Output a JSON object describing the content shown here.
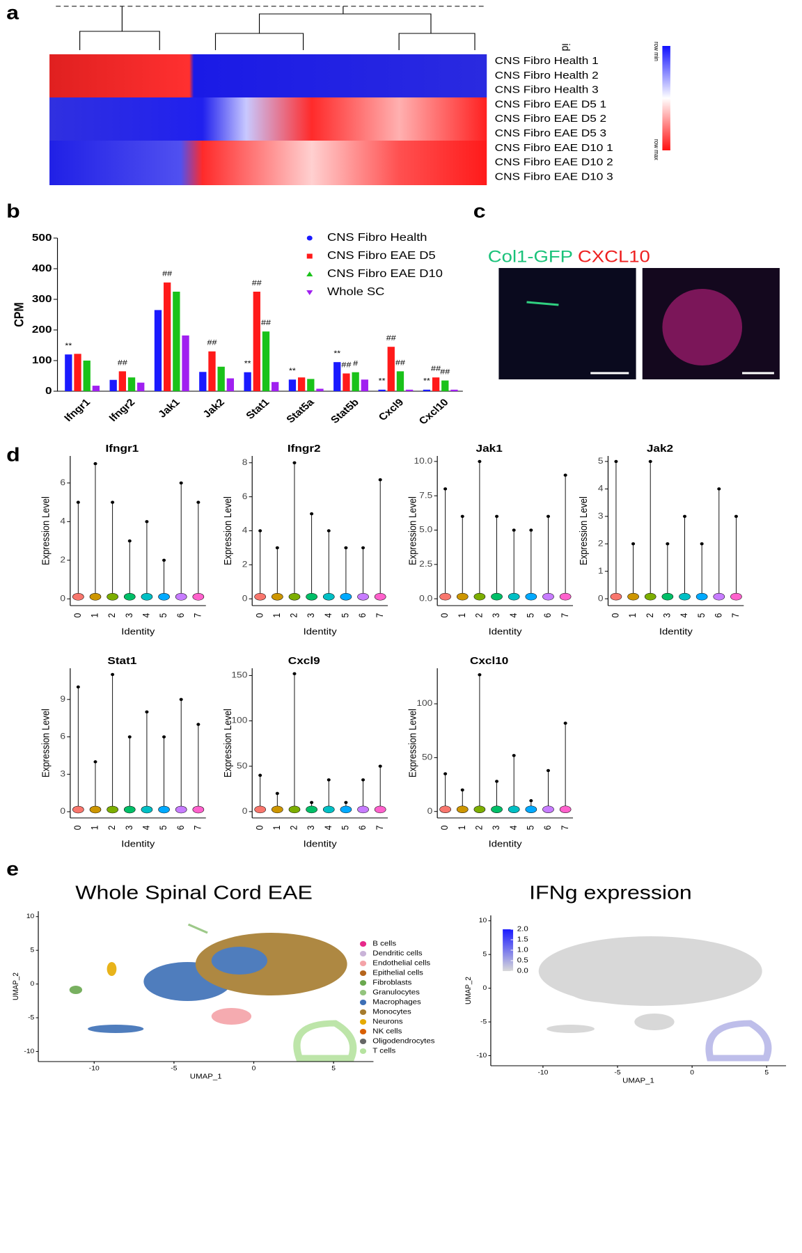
{
  "panel_labels": [
    "a",
    "b",
    "c",
    "d",
    "e"
  ],
  "figure_c": {
    "title_green": "Col1-GFP",
    "title_red": "CXCL10"
  },
  "chart_data": [
    {
      "type": "heatmap",
      "rows": [
        "CNS Fibro Health 1",
        "CNS Fibro Health 2",
        "CNS Fibro Health 3",
        "CNS Fibro EAE D5 1",
        "CNS Fibro EAE D5 2",
        "CNS Fibro EAE D5 3",
        "CNS Fibro EAE D10 1",
        "CNS Fibro EAE D10 2",
        "CNS Fibro EAE D10 3"
      ],
      "id_label": "id",
      "colorbar_labels": [
        "row min",
        "row max"
      ]
    },
    {
      "type": "bar",
      "ylabel": "CPM",
      "categories": [
        "Ifngr1",
        "Ifngr2",
        "Jak1",
        "Jak2",
        "Stat1",
        "Stat5a",
        "Stat5b",
        "Cxcl9",
        "Cxcl10"
      ],
      "ylim": [
        0,
        500
      ],
      "yticks": [
        0,
        100,
        200,
        300,
        400,
        500
      ],
      "series": [
        {
          "name": "CNS Fibro Health",
          "color": "#1a1aff",
          "values": [
            120,
            37,
            265,
            63,
            62,
            38,
            95,
            5,
            5
          ],
          "markers": [
            "**",
            null,
            null,
            null,
            "**",
            "**",
            "**",
            "**",
            "**"
          ]
        },
        {
          "name": "CNS Fibro EAE D5",
          "color": "#ff1a1a",
          "values": [
            122,
            65,
            355,
            130,
            325,
            45,
            58,
            145,
            45
          ],
          "markers": [
            null,
            "##",
            "##",
            "##",
            "##",
            null,
            "##",
            "##",
            "##"
          ]
        },
        {
          "name": "CNS Fibro EAE D10",
          "color": "#1ac21a",
          "values": [
            100,
            45,
            325,
            80,
            195,
            40,
            62,
            65,
            35
          ],
          "markers": [
            null,
            null,
            null,
            null,
            "##",
            null,
            "#",
            "##",
            "##"
          ]
        },
        {
          "name": "Whole SC",
          "color": "#a020f0",
          "values": [
            18,
            28,
            182,
            42,
            30,
            8,
            38,
            5,
            5
          ],
          "markers": [
            null,
            null,
            null,
            null,
            null,
            null,
            null,
            null,
            null
          ]
        }
      ]
    },
    {
      "type": "violin",
      "title": "Ifngr1",
      "xlabel": "Identity",
      "ylabel": "Expression Level",
      "categories": [
        "0",
        "1",
        "2",
        "3",
        "4",
        "5",
        "6",
        "7"
      ],
      "ylim": [
        -0.35,
        7.4
      ],
      "yticks": [
        0,
        2,
        4,
        6
      ],
      "values": [
        5,
        7,
        5,
        3,
        4,
        2,
        6,
        5
      ]
    },
    {
      "type": "violin",
      "title": "Ifngr2",
      "xlabel": "Identity",
      "ylabel": "Expression Level",
      "categories": [
        "0",
        "1",
        "2",
        "3",
        "4",
        "5",
        "6",
        "7"
      ],
      "ylim": [
        -0.4,
        8.4
      ],
      "yticks": [
        0,
        2,
        4,
        6,
        8
      ],
      "values": [
        4,
        3,
        8,
        5,
        4,
        3,
        3,
        7
      ]
    },
    {
      "type": "violin",
      "title": "Jak1",
      "xlabel": "Identity",
      "ylabel": "Expression Level",
      "categories": [
        "0",
        "1",
        "2",
        "3",
        "4",
        "5",
        "6",
        "7"
      ],
      "ylim": [
        -0.5,
        10.4
      ],
      "yticks": [
        {
          "value": 0,
          "label": "0.0"
        },
        {
          "value": 2.5,
          "label": "2.5"
        },
        {
          "value": 5,
          "label": "5.0"
        },
        {
          "value": 7.5,
          "label": "7.5"
        },
        {
          "value": 10,
          "label": "10.0"
        }
      ],
      "values": [
        8,
        6,
        10,
        6,
        5,
        5,
        6,
        9
      ]
    },
    {
      "type": "violin",
      "title": "Jak2",
      "xlabel": "Identity",
      "ylabel": "Expression Level",
      "categories": [
        "0",
        "1",
        "2",
        "3",
        "4",
        "5",
        "6",
        "7"
      ],
      "ylim": [
        -0.25,
        5.2
      ],
      "yticks": [
        0,
        1,
        2,
        3,
        4,
        5
      ],
      "values": [
        5,
        2,
        5,
        2,
        3,
        2,
        4,
        3
      ]
    },
    {
      "type": "violin",
      "title": "Stat1",
      "xlabel": "Identity",
      "ylabel": "Expression Level",
      "categories": [
        "0",
        "1",
        "2",
        "3",
        "4",
        "5",
        "6",
        "7"
      ],
      "ylim": [
        -0.5,
        11.5
      ],
      "yticks": [
        0,
        3,
        6,
        9
      ],
      "values": [
        10,
        4,
        11,
        6,
        8,
        6,
        9,
        7
      ]
    },
    {
      "type": "violin",
      "title": "Cxcl9",
      "xlabel": "Identity",
      "ylabel": "Expression Level",
      "categories": [
        "0",
        "1",
        "2",
        "3",
        "4",
        "5",
        "6",
        "7"
      ],
      "ylim": [
        -7,
        158
      ],
      "yticks": [
        0,
        50,
        100,
        150
      ],
      "values": [
        40,
        20,
        152,
        10,
        35,
        10,
        35,
        50
      ]
    },
    {
      "type": "violin",
      "title": "Cxcl10",
      "xlabel": "Identity",
      "ylabel": "Expression Level",
      "categories": [
        "0",
        "1",
        "2",
        "3",
        "4",
        "5",
        "6",
        "7"
      ],
      "ylim": [
        -6,
        133
      ],
      "yticks": [
        0,
        50,
        100
      ],
      "values": [
        35,
        20,
        127,
        28,
        52,
        10,
        38,
        82
      ]
    },
    {
      "type": "umap",
      "title": "Whole Spinal Cord EAE",
      "xlabel": "UMAP_1",
      "ylabel": "UMAP_2",
      "xlim": [
        -13.5,
        7.5
      ],
      "ylim": [
        -11.5,
        10.8
      ],
      "xticks": [
        -10,
        -5,
        0,
        5
      ],
      "yticks": [
        -10,
        -5,
        0,
        5,
        10
      ],
      "legend": [
        {
          "name": "B cells",
          "color": "#e7298a"
        },
        {
          "name": "Dendritic cells",
          "color": "#c9b3d8"
        },
        {
          "name": "Endothelial cells",
          "color": "#f4a3a8"
        },
        {
          "name": "Epithelial cells",
          "color": "#b5651d"
        },
        {
          "name": "Fibroblasts",
          "color": "#6aa84f"
        },
        {
          "name": "Granulocytes",
          "color": "#93c47d"
        },
        {
          "name": "Macrophages",
          "color": "#3d6fb6"
        },
        {
          "name": "Monocytes",
          "color": "#a67c2e"
        },
        {
          "name": "Neurons",
          "color": "#e6ab02"
        },
        {
          "name": "NK cells",
          "color": "#d95f02"
        },
        {
          "name": "Oligodendrocytes",
          "color": "#666666"
        },
        {
          "name": "T cells",
          "color": "#b6e3a0"
        }
      ]
    },
    {
      "type": "umap",
      "title": "IFNg expression",
      "xlabel": "UMAP_1",
      "ylabel": "UMAP_2",
      "xlim": [
        -13.5,
        6.3
      ],
      "ylim": [
        -11.5,
        10.8
      ],
      "xticks": [
        -10,
        -5,
        0,
        5
      ],
      "yticks": [
        -10,
        -5,
        0,
        5,
        10
      ],
      "colorbar_ticks": [
        {
          "value": 0,
          "label": "0.0"
        },
        {
          "value": 0.5,
          "label": "0.5"
        },
        {
          "value": 1,
          "label": "1.0"
        },
        {
          "value": 1.5,
          "label": "1.5"
        },
        {
          "value": 2,
          "label": "2.0"
        }
      ]
    }
  ]
}
